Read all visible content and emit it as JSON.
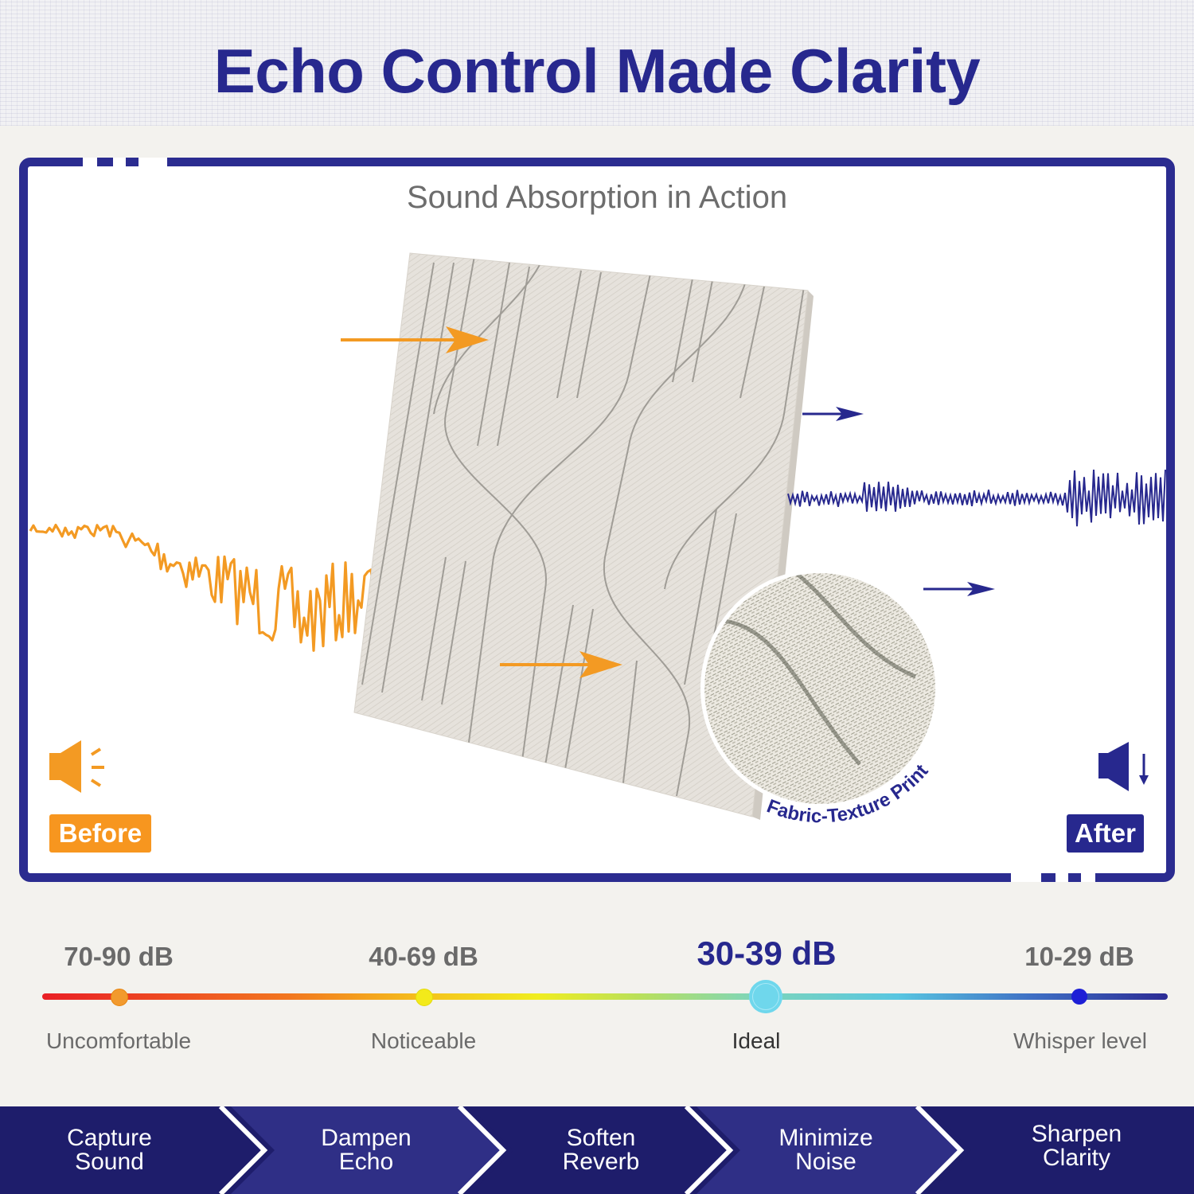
{
  "header": {
    "title": "Echo Control Made Clarity"
  },
  "panel": {
    "subtitle": "Sound Absorption in Action",
    "before_label": "Before",
    "after_label": "After",
    "inset_caption": "Fabric-Texture Print"
  },
  "icons": [
    "speaker-loud-icon",
    "speaker-quiet-icon",
    "arrow-right-icon"
  ],
  "colors": {
    "brand_blue": "#27288e",
    "accent_orange": "#f7961f",
    "panel_fabric": "#e6e2dc"
  },
  "scale": {
    "levels": [
      {
        "db": "70-90 dB",
        "label": "Uncomfortable",
        "marker_color": "#f29a2e"
      },
      {
        "db": "40-69 dB",
        "label": "Noticeable",
        "marker_color": "#f3ea1a"
      },
      {
        "db": "30-39 dB",
        "label": "Ideal",
        "marker_color": "#6fd7ec"
      },
      {
        "db": "10-29 dB",
        "label": "Whisper level",
        "marker_color": "#1d1fd6"
      }
    ],
    "highlighted": "30-39 dB"
  },
  "steps": [
    {
      "line1": "Capture",
      "line2": "Sound"
    },
    {
      "line1": "Dampen",
      "line2": "Echo"
    },
    {
      "line1": "Soften",
      "line2": "Reverb"
    },
    {
      "line1": "Minimize",
      "line2": "Noise"
    },
    {
      "line1": "Sharpen",
      "line2": "Clarity"
    }
  ]
}
